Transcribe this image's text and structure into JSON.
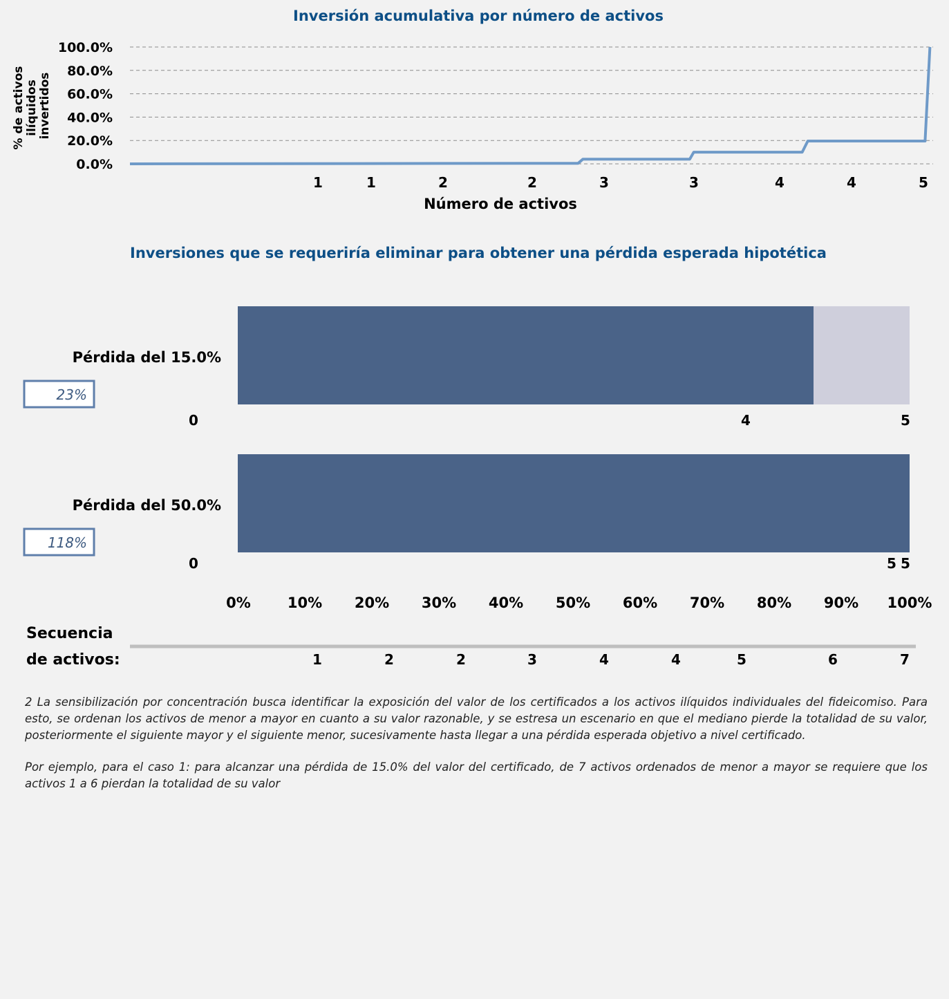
{
  "colors": {
    "title": "#0d4f86",
    "line": "#6f9ac8",
    "bar_dark": "#4a6388",
    "bar_light": "#cfcfdc",
    "grid": "#8c8c8c",
    "box_border": "#5f7fab",
    "box_text": "#3d5a80"
  },
  "line_chart": {
    "chart_data": {
      "type": "line",
      "title": "Inversión acumulativa por número de activos",
      "xlabel": "Número de activos",
      "ylabel": "% de activos ilíquidos invertidos",
      "ylim": [
        0,
        100
      ],
      "yticks": [
        "0.0%",
        "20.0%",
        "40.0%",
        "60.0%",
        "80.0%",
        "100.0%"
      ],
      "xticks": [
        "1",
        "1",
        "2",
        "2",
        "3",
        "3",
        "4",
        "4",
        "5"
      ],
      "x": [
        0.0,
        0.53,
        0.558,
        0.564,
        0.697,
        0.702,
        0.837,
        0.844,
        0.99,
        0.996
      ],
      "y": [
        0.0,
        0.5,
        0.5,
        4.0,
        4.0,
        10.0,
        10.0,
        19.5,
        19.5,
        100.0
      ],
      "grid": true
    }
  },
  "bar_chart": {
    "chart_data": {
      "type": "bar",
      "orientation": "horizontal",
      "stacked": true,
      "title": "Inversiones que se requeriría eliminar para obtener una pérdida esperada hipotética",
      "xlim": [
        0,
        100
      ],
      "xticks": [
        "0%",
        "10%",
        "20%",
        "30%",
        "40%",
        "50%",
        "60%",
        "70%",
        "80%",
        "90%",
        "100%"
      ],
      "categories": [
        "Pérdida del 15.0%",
        "Pérdida del 50.0%"
      ],
      "series": [
        {
          "values": [
            85.7,
            100.0
          ]
        },
        {
          "values": [
            14.3,
            0.0
          ]
        }
      ],
      "badges": [
        "23%",
        "118%"
      ],
      "under_labels": [
        {
          "start": "0",
          "mid": "4",
          "end": "5"
        },
        {
          "start": "0",
          "mid": "5",
          "end": "5"
        }
      ],
      "sequence_label_1": "Secuencia",
      "sequence_label_2": "de activos:",
      "sequence": [
        "1",
        "2",
        "2",
        "3",
        "4",
        "4",
        "5",
        "6",
        "7"
      ]
    }
  },
  "notes": {
    "p1": "2 La sensibilización por concentración busca identificar la exposición del valor de los certificados a los activos ilíquidos individuales del fideicomiso. Para esto, se ordenan los activos de menor a mayor en cuanto a su valor razonable, y se estresa un escenario en que el mediano pierde la totalidad de su valor, posteriormente el siguiente mayor y el siguiente menor, sucesivamente hasta llegar a una pérdida esperada objetivo a nivel certificado.",
    "p2": "Por ejemplo, para el caso 1: para alcanzar una pérdida de 15.0% del valor del certificado, de 7 activos ordenados de menor a mayor se requiere que los activos 1 a 6 pierdan la totalidad de su valor"
  }
}
